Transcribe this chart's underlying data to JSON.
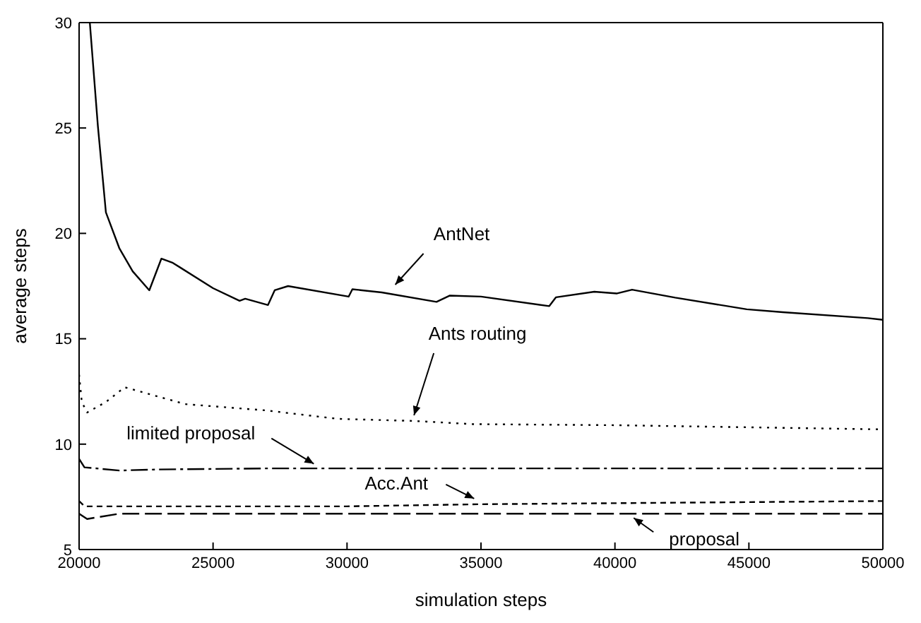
{
  "chart_data": {
    "type": "line",
    "xlabel": "simulation steps",
    "ylabel": "average steps",
    "xlim": [
      20000,
      50000
    ],
    "xticks": [
      20000,
      25000,
      30000,
      35000,
      40000,
      45000,
      50000
    ],
    "ylim": [
      5,
      30
    ],
    "yticks": [
      5,
      10,
      15,
      20,
      25,
      30
    ],
    "marker": "none",
    "series": [
      {
        "color": "#000000",
        "line_style": "solid",
        "x": [
          20400,
          20700,
          21000,
          21500,
          22000,
          22620,
          23070,
          23500,
          25000,
          25990,
          26200,
          27050,
          27300,
          27800,
          30060,
          30200,
          31300,
          33340,
          33840,
          35000,
          37550,
          37800,
          39230,
          40080,
          40640,
          42250,
          44920,
          46270,
          49440,
          50000
        ],
        "values": [
          30,
          25.1,
          21,
          19.3,
          18.2,
          17.3,
          18.8,
          18.6,
          17.4,
          16.8,
          16.9,
          16.6,
          17.3,
          17.5,
          17.0,
          17.35,
          17.2,
          16.75,
          17.05,
          17.0,
          16.55,
          16.97,
          17.23,
          17.15,
          17.33,
          16.95,
          16.4,
          16.26,
          15.98,
          15.9
        ]
      },
      {
        "color": "#000000",
        "line_style": "dotted",
        "x": [
          20000,
          20100,
          20300,
          21000,
          21700,
          23960,
          26980,
          29660,
          32520,
          34700,
          40000,
          45000,
          50000
        ],
        "values": [
          13.3,
          12.0,
          11.5,
          12.0,
          12.7,
          11.9,
          11.6,
          11.2,
          11.1,
          10.95,
          10.9,
          10.8,
          10.7
        ]
      },
      {
        "color": "#000000",
        "line_style": "dashed",
        "x": [
          20000,
          20200,
          21500,
          23000,
          27000,
          50000
        ],
        "values": [
          9.3,
          8.9,
          8.75,
          8.8,
          8.85,
          8.85
        ]
      },
      {
        "color": "#000000",
        "line_style": "dashed",
        "x": [
          20000,
          20200,
          30000,
          35000,
          50000
        ],
        "values": [
          7.3,
          7.05,
          7.05,
          7.15,
          7.3
        ]
      },
      {
        "color": "#000000",
        "line_style": "dashed",
        "x": [
          20000,
          20300,
          21500,
          50000
        ],
        "values": [
          6.7,
          6.45,
          6.7,
          6.7
        ]
      }
    ],
    "annotations": [
      {
        "text": "AntNet",
        "x": 31800,
        "y": 17.3
      },
      {
        "text": "Ants routing",
        "x": 32500,
        "y": 11.1
      },
      {
        "text": "limited proposal",
        "x": 28760,
        "y": 8.8
      },
      {
        "text": "Acc.Ant",
        "x": 34850,
        "y": 7.15
      },
      {
        "text": "proposal",
        "x": 40700,
        "y": 6.7
      }
    ]
  }
}
